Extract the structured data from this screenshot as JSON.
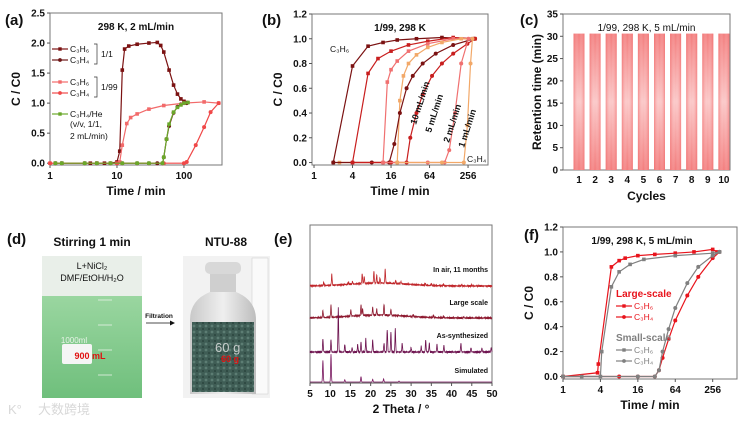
{
  "panels": {
    "a": "(a)",
    "b": "(b)",
    "c": "(c)",
    "d": "(d)",
    "e": "(e)",
    "f": "(f)"
  },
  "chart_data": [
    {
      "id": "a",
      "type": "line",
      "title": "298 K, 2 mL/min",
      "xlabel": "Time / min",
      "ylabel": "C / C0",
      "xscale": "log10",
      "xlim": [
        1,
        370
      ],
      "ylim": [
        -0.03,
        2.5
      ],
      "xticks": [
        "1",
        "10",
        "100"
      ],
      "xtick_values": [
        1,
        10,
        100
      ],
      "yticks": [
        "0.0",
        "0.5",
        "1.0",
        "1.5",
        "2.0",
        "2.5"
      ],
      "ytick_values": [
        0,
        0.5,
        1,
        1.5,
        2,
        2.5
      ],
      "legend_groups": [
        "1/1",
        "1/99"
      ],
      "legend_extra": [
        "(v/v, 1/1,",
        "2 mL/min)"
      ],
      "series": [
        {
          "name": "C₃H₆",
          "group": "1/1",
          "color": "#7b1212",
          "marker": "square",
          "x": [
            1.2,
            1.5,
            3.3,
            4,
            5,
            6.5,
            8,
            10,
            11,
            12,
            13,
            15,
            20,
            30,
            40,
            45,
            50,
            60,
            70,
            80,
            90,
            100,
            110
          ],
          "y": [
            0,
            0,
            0,
            0,
            0,
            0,
            0,
            0.02,
            0.2,
            1.55,
            1.9,
            1.95,
            1.98,
            2.0,
            2.01,
            1.96,
            1.85,
            1.55,
            1.3,
            1.15,
            1.07,
            1.03,
            1.01
          ]
        },
        {
          "name": "C₃H₄",
          "group": "1/1",
          "color": "#6e1616",
          "marker": "circle",
          "x": [
            1.2,
            1.5,
            3.3,
            5,
            8,
            12,
            20,
            30,
            40,
            48,
            50,
            55,
            60,
            70,
            80,
            90,
            100,
            110
          ],
          "y": [
            0,
            0,
            0,
            0,
            0,
            0,
            0,
            0,
            0,
            0,
            0.1,
            0.4,
            0.62,
            0.84,
            0.94,
            0.98,
            1.0,
            1.0
          ]
        },
        {
          "name": "C₃H₆",
          "group": "1/99",
          "color": "#f26a6a",
          "marker": "square",
          "x": [
            1,
            5,
            10,
            11,
            12,
            14,
            16,
            20,
            30,
            50,
            100,
            200,
            330
          ],
          "y": [
            0,
            0,
            0,
            0.02,
            0.3,
            0.66,
            0.76,
            0.82,
            0.9,
            0.96,
            1.0,
            1.02,
            1.0
          ]
        },
        {
          "name": "C₃H₄",
          "group": "1/99",
          "color": "#f04848",
          "marker": "circle",
          "x": [
            1,
            10,
            50,
            100,
            110,
            150,
            200,
            250,
            330
          ],
          "y": [
            0,
            0,
            0,
            0,
            0.02,
            0.3,
            0.6,
            0.85,
            1.0
          ]
        },
        {
          "name": "C₃H₄/He",
          "group": "",
          "color": "#6aa82a",
          "marker": "square",
          "x": [
            1.2,
            1.5,
            3.3,
            5,
            8,
            12,
            20,
            30,
            48,
            50,
            55,
            60,
            70,
            80,
            90,
            100,
            115
          ],
          "y": [
            0,
            0,
            0,
            0,
            0,
            0,
            0,
            0,
            0,
            0.1,
            0.4,
            0.65,
            0.85,
            0.93,
            0.97,
            1.0,
            1.01
          ]
        }
      ]
    },
    {
      "id": "b",
      "type": "line",
      "title": "1/99, 298 K",
      "xlabel": "Time / min",
      "ylabel": "C / C0",
      "xscale": "log2",
      "xlim": [
        0.93,
        525
      ],
      "ylim": [
        -0.02,
        1.2
      ],
      "xticks": [
        "1",
        "4",
        "16",
        "64",
        "256"
      ],
      "xtick_values": [
        1,
        4,
        16,
        64,
        256
      ],
      "yticks": [
        "0.0",
        "0.2",
        "0.4",
        "0.6",
        "0.8",
        "1.0",
        "1.2"
      ],
      "ytick_values": [
        0,
        0.2,
        0.4,
        0.6,
        0.8,
        1.0,
        1.2
      ],
      "annotations": {
        "c3h6": "C₃H₆",
        "c3h4": "C₃H₄",
        "flows": [
          "10 mL/min",
          "5 mL/min",
          "2 mL/min",
          "1 mL/min"
        ]
      },
      "series": [
        {
          "name": "C₃H₆ 10 mL/min",
          "color": "#7b1212",
          "marker": "square",
          "x": [
            2,
            4,
            7,
            12,
            20,
            40,
            100,
            300
          ],
          "y": [
            0,
            0.78,
            0.94,
            0.97,
            0.99,
            1.0,
            1.01,
            1.0
          ]
        },
        {
          "name": "C₃H₆ 5 mL/min",
          "color": "#c81e1e",
          "marker": "square",
          "x": [
            4,
            7,
            10,
            16,
            30,
            60,
            150,
            330
          ],
          "y": [
            0,
            0.72,
            0.84,
            0.9,
            0.95,
            0.98,
            1.01,
            1.0
          ]
        },
        {
          "name": "C₃H₆ 2 mL/min",
          "color": "#f07070",
          "marker": "square",
          "x": [
            12,
            14,
            16,
            20,
            30,
            60,
            150,
            330
          ],
          "y": [
            0,
            0.65,
            0.75,
            0.82,
            0.9,
            0.96,
            1.0,
            1.0
          ]
        },
        {
          "name": "C₃H₆ 1 mL/min",
          "color": "#f2a868",
          "marker": "square",
          "x": [
            2.5,
            20,
            22,
            25,
            30,
            40,
            60,
            100,
            200,
            330
          ],
          "y": [
            0,
            0,
            0.5,
            0.7,
            0.8,
            0.87,
            0.93,
            0.97,
            1.0,
            1.0
          ]
        },
        {
          "name": "C₃H₄ 10 mL/min",
          "color": "#7b1212",
          "marker": "circle",
          "x": [
            2,
            8,
            15,
            18,
            22,
            28,
            35,
            50,
            80,
            150,
            320
          ],
          "y": [
            0,
            0,
            0,
            0.15,
            0.4,
            0.6,
            0.7,
            0.8,
            0.88,
            0.95,
            1.0
          ]
        },
        {
          "name": "C₃H₄ 5 mL/min",
          "color": "#c81e1e",
          "marker": "circle",
          "x": [
            4,
            16,
            28,
            32,
            40,
            50,
            70,
            100,
            150,
            250,
            330
          ],
          "y": [
            0,
            0,
            0,
            0.2,
            0.4,
            0.55,
            0.7,
            0.8,
            0.88,
            0.96,
            1.0
          ]
        },
        {
          "name": "C₃H₄ 2 mL/min",
          "color": "#f07070",
          "marker": "circle",
          "x": [
            12,
            60,
            110,
            130,
            160,
            200,
            260
          ],
          "y": [
            0,
            0,
            0,
            0.1,
            0.4,
            0.8,
            1.0
          ]
        },
        {
          "name": "C₃H₄ 1 mL/min",
          "color": "#f2a868",
          "marker": "circle",
          "x": [
            20,
            100,
            220,
            250,
            280,
            300
          ],
          "y": [
            0,
            0,
            0,
            0.3,
            0.8,
            1.0
          ]
        }
      ]
    },
    {
      "id": "c",
      "type": "bar",
      "title": "1/99, 298 K, 5 mL/min",
      "xlabel": "Cycles",
      "ylabel": "Retention time (min)",
      "ylim": [
        0,
        35
      ],
      "categories": [
        "1",
        "2",
        "3",
        "4",
        "5",
        "6",
        "7",
        "8",
        "9",
        "10"
      ],
      "values": [
        30.6,
        30.6,
        30.6,
        30.6,
        30.6,
        30.6,
        30.6,
        30.6,
        30.6,
        30.6
      ],
      "yticks": [
        "0",
        "5",
        "10",
        "15",
        "20",
        "25",
        "30",
        "35"
      ],
      "ytick_values": [
        0,
        5,
        10,
        15,
        20,
        25,
        30,
        35
      ],
      "color": "#f07878"
    },
    {
      "id": "e",
      "type": "line",
      "title": "",
      "xlabel": "2 Theta / °",
      "ylabel": "",
      "xlim": [
        5,
        50
      ],
      "xticks": [
        "5",
        "10",
        "15",
        "20",
        "25",
        "30",
        "35",
        "40",
        "45",
        "50"
      ],
      "xtick_values": [
        5,
        10,
        15,
        20,
        25,
        30,
        35,
        40,
        45,
        50
      ],
      "series": [
        {
          "name": "In air, 11 months",
          "color": "#c0282c",
          "peaks": [
            [
              8.4,
              0.15
            ],
            [
              10.4,
              0.55
            ],
            [
              14.5,
              0.1
            ],
            [
              15.5,
              0.12
            ],
            [
              17.9,
              0.5
            ],
            [
              18.4,
              0.35
            ],
            [
              20.8,
              0.6
            ],
            [
              21.5,
              0.4
            ],
            [
              22.3,
              0.25
            ],
            [
              23.6,
              0.7
            ],
            [
              26.2,
              0.15
            ],
            [
              27.5,
              0.12
            ],
            [
              33.5,
              0.08
            ],
            [
              35,
              0.1
            ],
            [
              38,
              0.08
            ],
            [
              42.5,
              0.07
            ],
            [
              45,
              0.06
            ]
          ]
        },
        {
          "name": "Large scale",
          "color": "#8e1a30",
          "peaks": [
            [
              8.2,
              0.35
            ],
            [
              10.2,
              0.6
            ],
            [
              15.1,
              0.3
            ],
            [
              17.6,
              0.55
            ],
            [
              18,
              0.35
            ],
            [
              20.5,
              0.4
            ],
            [
              21.5,
              0.3
            ],
            [
              23.3,
              0.55
            ],
            [
              25,
              0.3
            ],
            [
              30.5,
              0.08
            ],
            [
              35.5,
              0.12
            ],
            [
              38,
              0.08
            ],
            [
              43,
              0.06
            ]
          ]
        },
        {
          "name": "As-synthesized",
          "color": "#6e1450",
          "peaks": [
            [
              8.2,
              0.6
            ],
            [
              10.2,
              0.55
            ],
            [
              12.0,
              2.0
            ],
            [
              13.6,
              0.35
            ],
            [
              15.4,
              0.2
            ],
            [
              16.8,
              0.35
            ],
            [
              17.6,
              0.45
            ],
            [
              18.8,
              0.6
            ],
            [
              20.5,
              0.55
            ],
            [
              23.3,
              0.4
            ],
            [
              24.1,
              1.0
            ],
            [
              25,
              0.9
            ],
            [
              26.1,
              1.05
            ],
            [
              27.8,
              0.4
            ],
            [
              30,
              0.2
            ],
            [
              32.5,
              0.25
            ],
            [
              33.6,
              0.55
            ],
            [
              34.5,
              0.4
            ],
            [
              36.4,
              0.35
            ],
            [
              38.1,
              0.3
            ],
            [
              42.3,
              0.4
            ],
            [
              44.8,
              0.2
            ],
            [
              47.5,
              0.18
            ],
            [
              49.8,
              0.2
            ]
          ]
        },
        {
          "name": "Simulated",
          "color": "#7a1a60",
          "peaks": [
            [
              8.2,
              1.2
            ],
            [
              10.2,
              1.55
            ],
            [
              13.6,
              0.12
            ],
            [
              17.6,
              0.3
            ],
            [
              20.5,
              0.15
            ],
            [
              23.2,
              0.18
            ],
            [
              27,
              0.05
            ]
          ]
        }
      ]
    },
    {
      "id": "f",
      "type": "line",
      "title": "1/99, 298 K, 5 mL/min",
      "xlabel": "Time / min",
      "ylabel": "C / C0",
      "xscale": "log2",
      "xlim": [
        1,
        630
      ],
      "ylim": [
        -0.02,
        1.2
      ],
      "xticks": [
        "1",
        "4",
        "16",
        "64",
        "256"
      ],
      "xtick_values": [
        1,
        4,
        16,
        64,
        256
      ],
      "yticks": [
        "0.0",
        "0.2",
        "0.4",
        "0.6",
        "0.8",
        "1.0",
        "1.2"
      ],
      "ytick_values": [
        0,
        0.2,
        0.4,
        0.6,
        0.8,
        1.0,
        1.2
      ],
      "legend_groups": [
        "Large-scale",
        "Small-scale"
      ],
      "series": [
        {
          "name": "C₃H₆",
          "group": "Large-scale",
          "color": "#e8141c",
          "marker": "square",
          "x": [
            1,
            3.6,
            3.7,
            6,
            8,
            10,
            16,
            30,
            64,
            128,
            256,
            300
          ],
          "y": [
            0,
            0.03,
            0.1,
            0.88,
            0.93,
            0.95,
            0.97,
            0.98,
            0.99,
            1.0,
            1.02,
            1.0
          ]
        },
        {
          "name": "C₃H₄",
          "group": "Large-scale",
          "color": "#e8141c",
          "marker": "circle",
          "x": [
            1,
            8,
            16,
            30,
            35,
            40,
            50,
            64,
            100,
            150,
            256,
            330
          ],
          "y": [
            0,
            0,
            0,
            0,
            0.05,
            0.15,
            0.3,
            0.45,
            0.65,
            0.8,
            0.95,
            1.0
          ]
        },
        {
          "name": "C₃H₆",
          "group": "Small-scale",
          "color": "#808080",
          "marker": "square",
          "x": [
            1,
            2,
            4,
            4.2,
            6,
            8,
            12,
            20,
            64,
            256,
            330
          ],
          "y": [
            0,
            0,
            0,
            0.2,
            0.72,
            0.84,
            0.9,
            0.94,
            0.97,
            0.99,
            1.0
          ]
        },
        {
          "name": "C₃H₄",
          "group": "Small-scale",
          "color": "#808080",
          "marker": "circle",
          "x": [
            1,
            16,
            30,
            35,
            40,
            50,
            64,
            100,
            150,
            256,
            330
          ],
          "y": [
            0,
            0,
            0,
            0.05,
            0.2,
            0.38,
            0.55,
            0.75,
            0.88,
            0.97,
            1.0
          ]
        }
      ]
    }
  ],
  "photos": {
    "left_title": "Stirring 1 min",
    "right_title": "NTU-88",
    "beaker_label_1": "L+NiCl₂",
    "beaker_label_2": "DMF/EtOH/H₂O",
    "beaker_volume": "900 mL",
    "beaker_print": "1000ml",
    "arrow_label": "Filtration",
    "jar_mass": "60 g",
    "jar_handwritten": "60 g"
  },
  "watermark": "大数跨境"
}
